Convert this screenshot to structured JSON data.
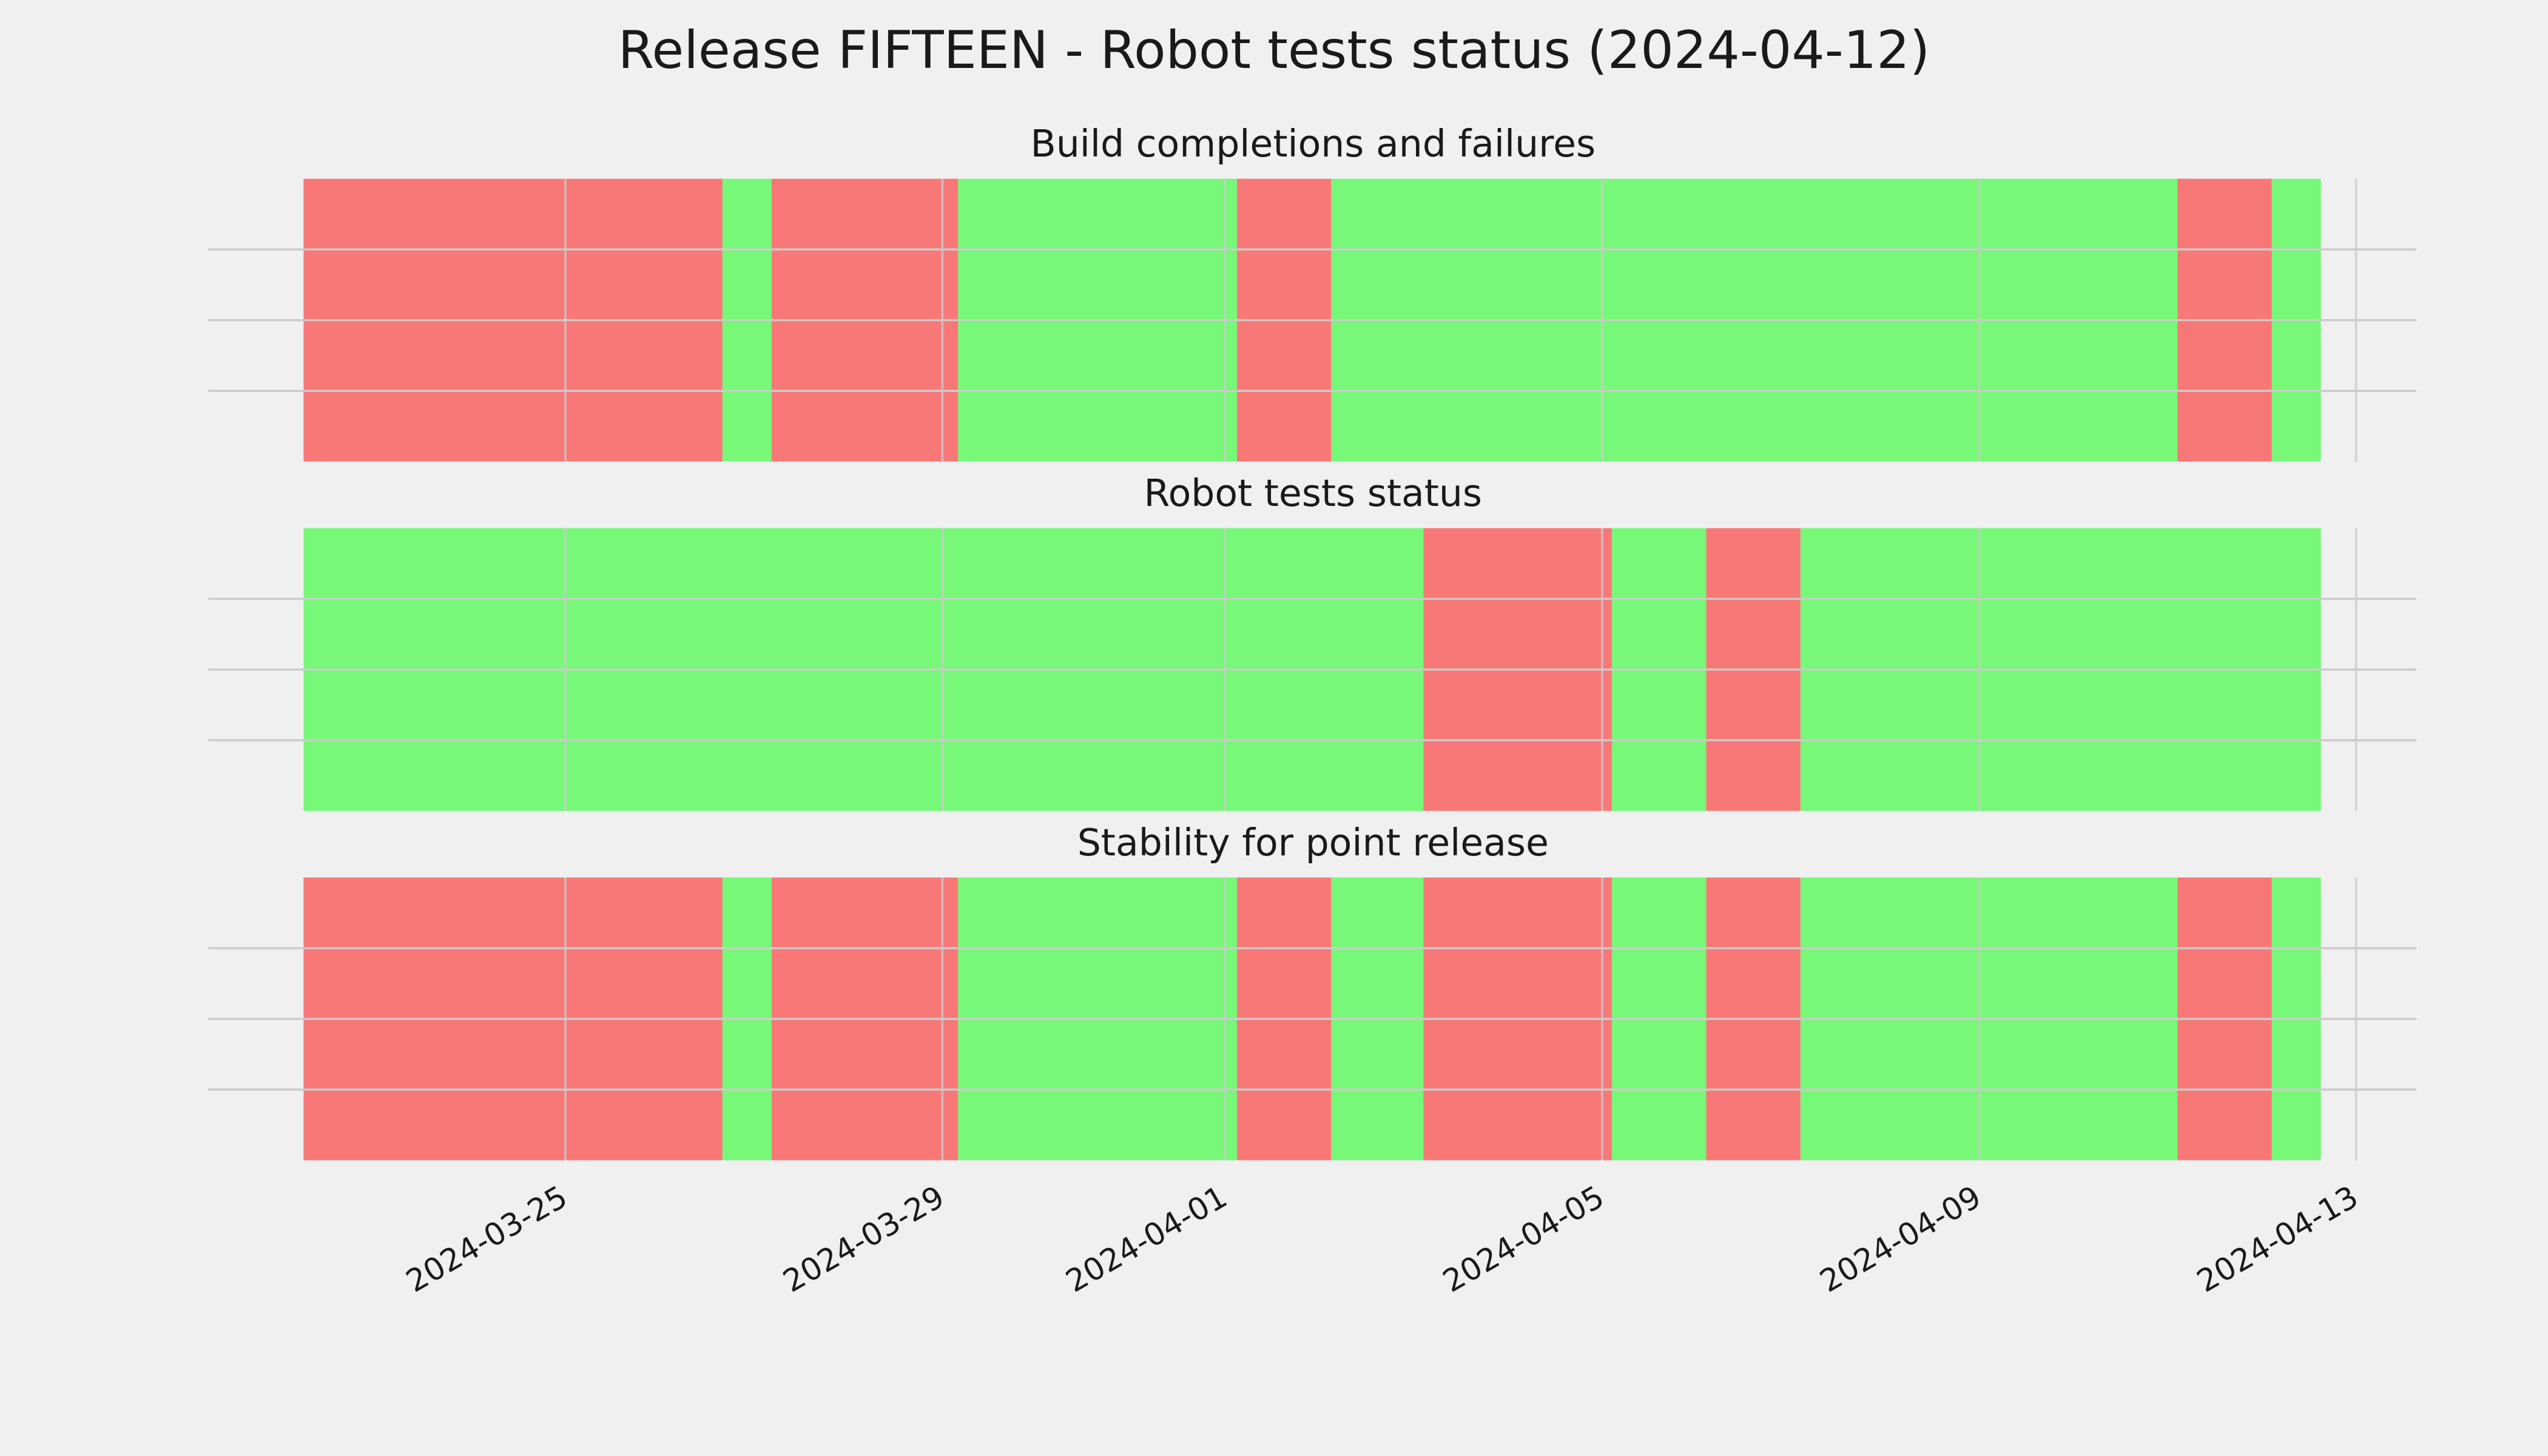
{
  "title": "Release FIFTEEN - Robot tests status (2024-04-12)",
  "chart_data": [
    {
      "type": "timeline",
      "title": "Build completions and failures",
      "xlim": [
        "2024-03-21T05:00",
        "2024-04-13T15:20"
      ],
      "ylim": [
        0,
        1
      ],
      "xticks": [
        "2024-03-25",
        "2024-03-29",
        "2024-04-01",
        "2024-04-05",
        "2024-04-09",
        "2024-04-13"
      ],
      "yticks": [
        0.25,
        0.5,
        0.75
      ],
      "grid": true,
      "alpha": 0.5,
      "spans": [
        {
          "start": "2024-03-22T05:20",
          "end": "2024-03-26T16:00",
          "color": "#ff0000"
        },
        {
          "start": "2024-03-26T16:00",
          "end": "2024-03-27T04:30",
          "color": "#00ff00"
        },
        {
          "start": "2024-03-27T04:30",
          "end": "2024-03-29T04:00",
          "color": "#ff0000"
        },
        {
          "start": "2024-03-29T04:00",
          "end": "2024-04-01T03:00",
          "color": "#00ff00"
        },
        {
          "start": "2024-04-01T03:00",
          "end": "2024-04-02T03:00",
          "color": "#ff0000"
        },
        {
          "start": "2024-04-02T03:00",
          "end": "2024-04-11T02:30",
          "color": "#00ff00"
        },
        {
          "start": "2024-04-11T02:30",
          "end": "2024-04-12T02:30",
          "color": "#ff0000"
        },
        {
          "start": "2024-04-12T02:30",
          "end": "2024-04-12T15:00",
          "color": "#00ff00"
        }
      ]
    },
    {
      "type": "timeline",
      "title": "Robot tests status",
      "xlim": [
        "2024-03-21T05:00",
        "2024-04-13T15:20"
      ],
      "ylim": [
        0,
        1
      ],
      "xticks": [
        "2024-03-25",
        "2024-03-29",
        "2024-04-01",
        "2024-04-05",
        "2024-04-09",
        "2024-04-13"
      ],
      "yticks": [
        0.25,
        0.5,
        0.75
      ],
      "grid": true,
      "alpha": 0.5,
      "spans": [
        {
          "start": "2024-03-22T05:20",
          "end": "2024-04-03T02:30",
          "color": "#00ff00"
        },
        {
          "start": "2024-04-03T02:30",
          "end": "2024-04-05T02:30",
          "color": "#ff0000"
        },
        {
          "start": "2024-04-05T02:30",
          "end": "2024-04-06T02:30",
          "color": "#00ff00"
        },
        {
          "start": "2024-04-06T02:30",
          "end": "2024-04-07T02:30",
          "color": "#ff0000"
        },
        {
          "start": "2024-04-07T02:30",
          "end": "2024-04-12T15:00",
          "color": "#00ff00"
        }
      ]
    },
    {
      "type": "timeline",
      "title": "Stability for point release",
      "xlim": [
        "2024-03-21T05:00",
        "2024-04-13T15:20"
      ],
      "ylim": [
        0,
        1
      ],
      "xticks": [
        "2024-03-25",
        "2024-03-29",
        "2024-04-01",
        "2024-04-05",
        "2024-04-09",
        "2024-04-13"
      ],
      "yticks": [
        0.25,
        0.5,
        0.75
      ],
      "grid": true,
      "alpha": 0.5,
      "spans": [
        {
          "start": "2024-03-22T05:20",
          "end": "2024-03-26T16:00",
          "color": "#ff0000"
        },
        {
          "start": "2024-03-26T16:00",
          "end": "2024-03-27T04:30",
          "color": "#00ff00"
        },
        {
          "start": "2024-03-27T04:30",
          "end": "2024-03-29T04:00",
          "color": "#ff0000"
        },
        {
          "start": "2024-03-29T04:00",
          "end": "2024-04-01T03:00",
          "color": "#00ff00"
        },
        {
          "start": "2024-04-01T03:00",
          "end": "2024-04-02T03:00",
          "color": "#ff0000"
        },
        {
          "start": "2024-04-02T03:00",
          "end": "2024-04-03T02:30",
          "color": "#00ff00"
        },
        {
          "start": "2024-04-03T02:30",
          "end": "2024-04-05T02:30",
          "color": "#ff0000"
        },
        {
          "start": "2024-04-05T02:30",
          "end": "2024-04-06T02:30",
          "color": "#00ff00"
        },
        {
          "start": "2024-04-06T02:30",
          "end": "2024-04-07T02:30",
          "color": "#ff0000"
        },
        {
          "start": "2024-04-07T02:30",
          "end": "2024-04-11T02:30",
          "color": "#00ff00"
        },
        {
          "start": "2024-04-11T02:30",
          "end": "2024-04-12T02:30",
          "color": "#ff0000"
        },
        {
          "start": "2024-04-12T02:30",
          "end": "2024-04-12T15:00",
          "color": "#00ff00"
        }
      ]
    }
  ]
}
